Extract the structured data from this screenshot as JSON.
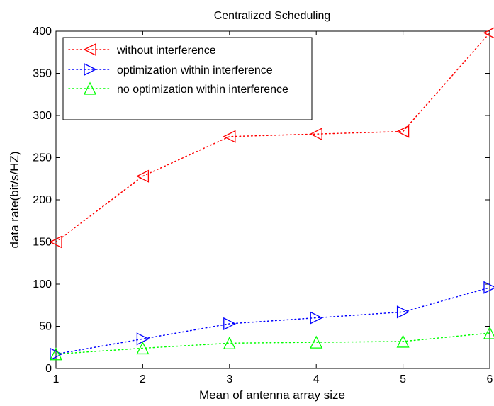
{
  "chart_data": {
    "type": "line",
    "title": "Centralized Scheduling",
    "xlabel": "Mean of antenna array size",
    "ylabel": "data rate(bit/s/HZ)",
    "xlim": [
      1,
      6
    ],
    "ylim": [
      0,
      400
    ],
    "xticks": [
      1,
      2,
      3,
      4,
      5,
      6
    ],
    "yticks": [
      0,
      50,
      100,
      150,
      200,
      250,
      300,
      350,
      400
    ],
    "grid": false,
    "legend_position": "top-left",
    "x": [
      1,
      2,
      3,
      4,
      5,
      6
    ],
    "series": [
      {
        "name": "without interference",
        "values": [
          150,
          228,
          275,
          278,
          281,
          398
        ],
        "color": "#ff0000",
        "marker": "triangle-left",
        "linestyle": "dotted"
      },
      {
        "name": "optimization within interference",
        "values": [
          17,
          35,
          53,
          60,
          67,
          96
        ],
        "color": "#0000ff",
        "marker": "triangle-right",
        "linestyle": "dotted"
      },
      {
        "name": "no optimization within interference",
        "values": [
          17,
          24,
          30,
          31,
          32,
          42
        ],
        "color": "#00ff00",
        "marker": "triangle-up",
        "linestyle": "dotted"
      }
    ]
  }
}
